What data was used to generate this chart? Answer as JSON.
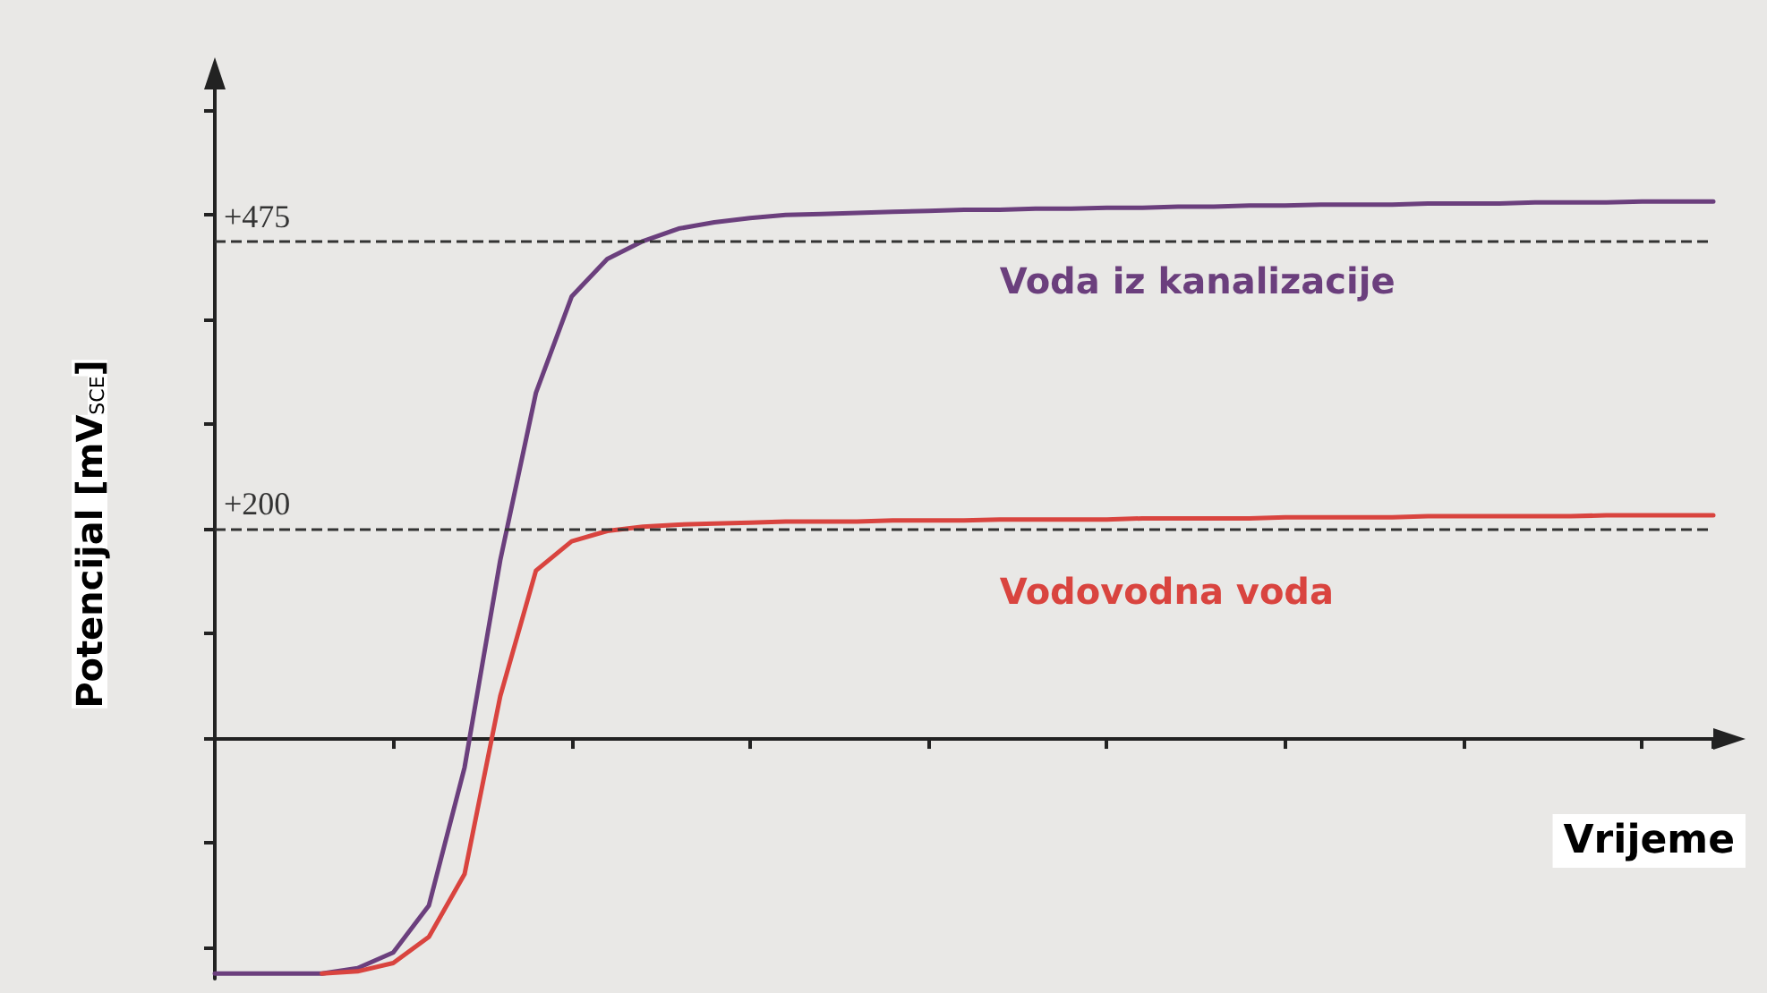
{
  "chart_data": {
    "type": "line",
    "xlabel": "Vrijeme",
    "ylabel": "Potencijal [mV$_{SCE}$]",
    "categories": [
      null,
      null,
      null,
      null,
      null,
      null,
      null,
      null,
      null,
      null,
      null,
      null,
      null,
      null,
      null,
      null,
      null,
      null,
      null,
      null,
      null,
      null,
      null,
      null,
      null,
      null,
      null,
      null,
      null,
      null,
      null,
      null,
      null,
      null,
      null,
      null,
      null,
      null,
      null,
      null,
      null,
      null,
      null
    ],
    "series": [
      {
        "name": "Voda iz kanalizacije",
        "color": "#6b3f7d",
        "values": [
          -225,
          -225,
          -225,
          -225,
          -220,
          -205,
          -160,
          -28,
          170,
          330,
          422,
          458,
          475,
          487,
          493,
          497,
          500,
          501,
          502,
          503,
          504,
          505,
          505,
          506,
          506,
          507,
          507,
          508,
          508,
          509,
          509,
          510,
          510,
          510,
          511,
          511,
          511,
          512,
          512,
          512,
          513,
          513,
          513
        ]
      },
      {
        "name": "Vodovodna voda",
        "color": "#d9443f",
        "values": [
          null,
          null,
          null,
          -225,
          -223,
          -215,
          -190,
          -130,
          40,
          160,
          188,
          198,
          202,
          204,
          205,
          206,
          207,
          207,
          207,
          208,
          208,
          208,
          209,
          209,
          209,
          209,
          210,
          210,
          210,
          210,
          211,
          211,
          211,
          211,
          212,
          212,
          212,
          212,
          212,
          213,
          213,
          213,
          213
        ]
      }
    ],
    "ylim": [
      -230,
      620
    ],
    "yticks": [
      {
        "value": -200,
        "label": null
      },
      {
        "value": -100,
        "label": null
      },
      {
        "value": 0,
        "label": null
      },
      {
        "value": 100,
        "label": null
      },
      {
        "value": 200,
        "label": null
      },
      {
        "value": 300,
        "label": null
      },
      {
        "value": 400,
        "label": null
      },
      {
        "value": 500,
        "label": null
      },
      {
        "value": 600,
        "label": null
      }
    ],
    "ref_lines": [
      {
        "axis": "y",
        "value": 475,
        "label": "+475",
        "color": "#333333",
        "line_style": "dashed"
      },
      {
        "axis": "y",
        "value": 200,
        "label": "+200",
        "color": "#333333",
        "line_style": "dashed"
      }
    ],
    "grid": false,
    "legend": false,
    "marker": "none",
    "line_style": "solid"
  }
}
